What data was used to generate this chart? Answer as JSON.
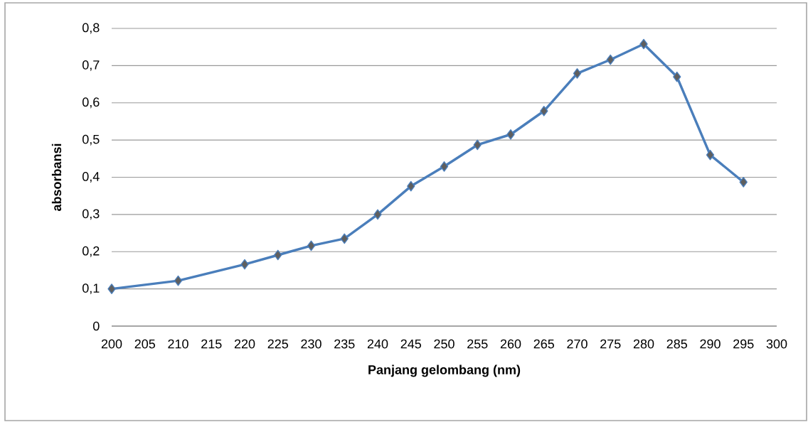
{
  "chart_data": {
    "type": "line",
    "xlabel": "Panjang gelombang (nm)",
    "ylabel": "absorbansi",
    "x": [
      200,
      210,
      220,
      225,
      230,
      235,
      240,
      245,
      250,
      255,
      260,
      265,
      270,
      275,
      280,
      285,
      290,
      295
    ],
    "series": [
      {
        "color": "#4a7ebb",
        "values": [
          0.1,
          0.122,
          0.166,
          0.191,
          0.216,
          0.235,
          0.3,
          0.376,
          0.429,
          0.487,
          0.515,
          0.578,
          0.679,
          0.716,
          0.758,
          0.67,
          0.46,
          0.387
        ]
      }
    ],
    "xlim": [
      200,
      300
    ],
    "xticks": [
      200,
      205,
      210,
      215,
      220,
      225,
      230,
      235,
      240,
      245,
      250,
      255,
      260,
      265,
      270,
      275,
      280,
      285,
      290,
      295,
      300
    ],
    "ylim": [
      0,
      0.8
    ],
    "yticks": [
      {
        "value": 0,
        "label": "0"
      },
      {
        "value": 0.1,
        "label": "0,1"
      },
      {
        "value": 0.2,
        "label": "0,2"
      },
      {
        "value": 0.3,
        "label": "0,3"
      },
      {
        "value": 0.4,
        "label": "0,4"
      },
      {
        "value": 0.5,
        "label": "0,5"
      },
      {
        "value": 0.6,
        "label": "0,6"
      },
      {
        "value": 0.7,
        "label": "0,7"
      },
      {
        "value": 0.8,
        "label": "0,8"
      }
    ],
    "grid": "y",
    "marker": "diamond",
    "line_style": "solid"
  }
}
